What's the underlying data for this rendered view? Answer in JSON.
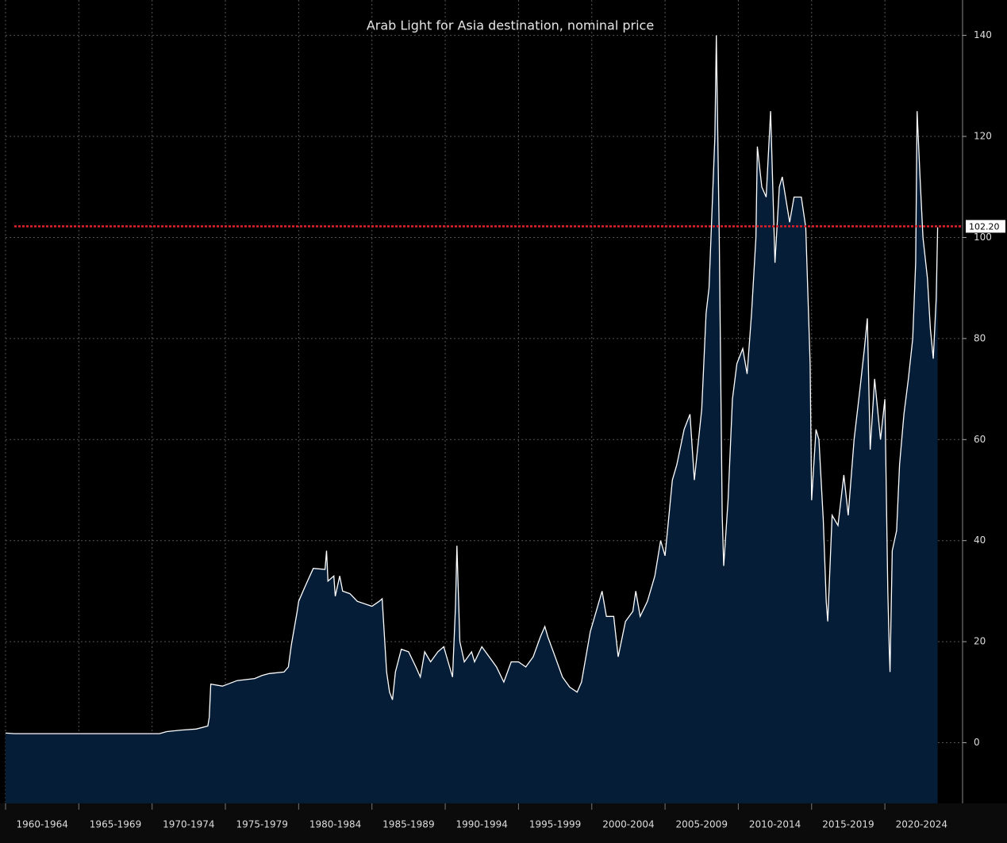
{
  "chart_data": {
    "type": "area",
    "title": "Arab Light for Asia destination, nominal price",
    "x": [
      1960,
      1960.6,
      1970.5,
      1971,
      1972,
      1973,
      1973.8,
      1973.9,
      1974.0,
      1974.8,
      1975.8,
      1977,
      1977.5,
      1978,
      1979,
      1979.3,
      1979.5,
      1979.9,
      1980,
      1980.3,
      1980.6,
      1981,
      1981.8,
      1981.9,
      1982,
      1982.4,
      1982.5,
      1982.8,
      1983,
      1983.5,
      1984,
      1985,
      1985.5,
      1985.7,
      1986,
      1986.2,
      1986.4,
      1986.6,
      1987,
      1987.5,
      1988,
      1988.3,
      1988.6,
      1989,
      1989.5,
      1989.9,
      1990.3,
      1990.5,
      1990.7,
      1990.8,
      1991,
      1991.3,
      1991.8,
      1992,
      1992.5,
      1993,
      1993.5,
      1994,
      1994.5,
      1995,
      1995.5,
      1996,
      1996.5,
      1996.8,
      1997,
      1997.5,
      1998,
      1998.5,
      1999,
      1999.3,
      1999.9,
      2000.3,
      2000.7,
      2001,
      2001.5,
      2001.8,
      2002.3,
      2002.8,
      2003,
      2003.3,
      2003.8,
      2004.3,
      2004.7,
      2005,
      2005.5,
      2005.8,
      2006.3,
      2006.7,
      2007,
      2007.5,
      2007.8,
      2008,
      2008.4,
      2008.5,
      2008.7,
      2008.9,
      2009,
      2009.3,
      2009.6,
      2009.9,
      2010.3,
      2010.6,
      2010.9,
      2011.2,
      2011.3,
      2011.6,
      2011.9,
      2012.2,
      2012.5,
      2012.8,
      2013,
      2013.5,
      2013.8,
      2014.3,
      2014.6,
      2014.9,
      2015,
      2015.3,
      2015.5,
      2015.8,
      2016,
      2016.1,
      2016.4,
      2016.8,
      2017.2,
      2017.5,
      2017.9,
      2018.3,
      2018.6,
      2018.8,
      2019,
      2019.3,
      2019.7,
      2020.0,
      2020.2,
      2020.3,
      2020.35,
      2020.5,
      2020.8,
      2021,
      2021.3,
      2021.6,
      2021.9,
      2022.1,
      2022.2,
      2022.4,
      2022.6,
      2022.9,
      2023.1,
      2023.3,
      2023.5,
      2023.6
    ],
    "values": [
      1.9,
      1.8,
      1.8,
      2.2,
      2.5,
      2.7,
      3.3,
      5.0,
      11.6,
      11.2,
      12.3,
      12.7,
      13.3,
      13.7,
      14.0,
      15,
      19.3,
      26,
      28,
      30,
      32,
      34.5,
      34.3,
      38,
      32,
      33,
      29,
      33,
      30,
      29.5,
      28,
      27,
      28,
      28.5,
      14,
      10,
      8.5,
      14,
      18.5,
      18,
      15,
      13,
      18,
      16,
      18,
      19,
      15,
      13,
      27,
      39,
      20,
      16,
      18,
      16,
      19,
      17,
      15,
      12,
      16,
      16,
      15,
      17,
      21,
      23,
      21,
      17,
      13,
      11,
      10,
      12,
      22,
      26,
      30,
      25,
      25,
      17,
      24,
      26,
      30,
      25,
      28,
      33,
      40,
      37,
      52,
      55,
      62,
      65,
      52,
      66,
      85,
      90,
      120,
      140,
      100,
      45,
      35,
      48,
      68,
      75,
      78,
      73,
      85,
      100,
      118,
      110,
      108,
      125,
      95,
      110,
      112,
      103,
      108,
      108,
      102,
      75,
      48,
      62,
      60,
      44,
      28,
      24,
      45,
      43,
      53,
      45,
      60,
      70,
      78,
      84,
      58,
      72,
      60,
      68,
      30,
      18,
      14,
      38,
      42,
      55,
      65,
      72,
      80,
      95,
      125,
      112,
      100,
      92,
      82,
      76,
      88,
      102
    ],
    "color": "#061d38",
    "line_color": "#ffffff",
    "xlim": [
      1960,
      2025.3
    ],
    "xticks": [
      {
        "value": 1960,
        "label": "1960-1964"
      },
      {
        "value": 1965,
        "label": "1965-1969"
      },
      {
        "value": 1970,
        "label": "1970-1974"
      },
      {
        "value": 1975,
        "label": "1975-1979"
      },
      {
        "value": 1980,
        "label": "1980-1984"
      },
      {
        "value": 1985,
        "label": "1985-1989"
      },
      {
        "value": 1990,
        "label": "1990-1994"
      },
      {
        "value": 1995,
        "label": "1995-1999"
      },
      {
        "value": 2000,
        "label": "2000-2004"
      },
      {
        "value": 2005,
        "label": "2005-2009"
      },
      {
        "value": 2010,
        "label": "2010-2014"
      },
      {
        "value": 2015,
        "label": "2015-2019"
      },
      {
        "value": 2020,
        "label": "2020-2024"
      }
    ],
    "ylim": [
      -12,
      147
    ],
    "yticks": [
      0,
      20,
      40,
      60,
      80,
      100,
      120,
      140
    ],
    "grid": true,
    "hline": {
      "value": 102.2,
      "label": "102.20",
      "color": "#e0202a"
    }
  }
}
